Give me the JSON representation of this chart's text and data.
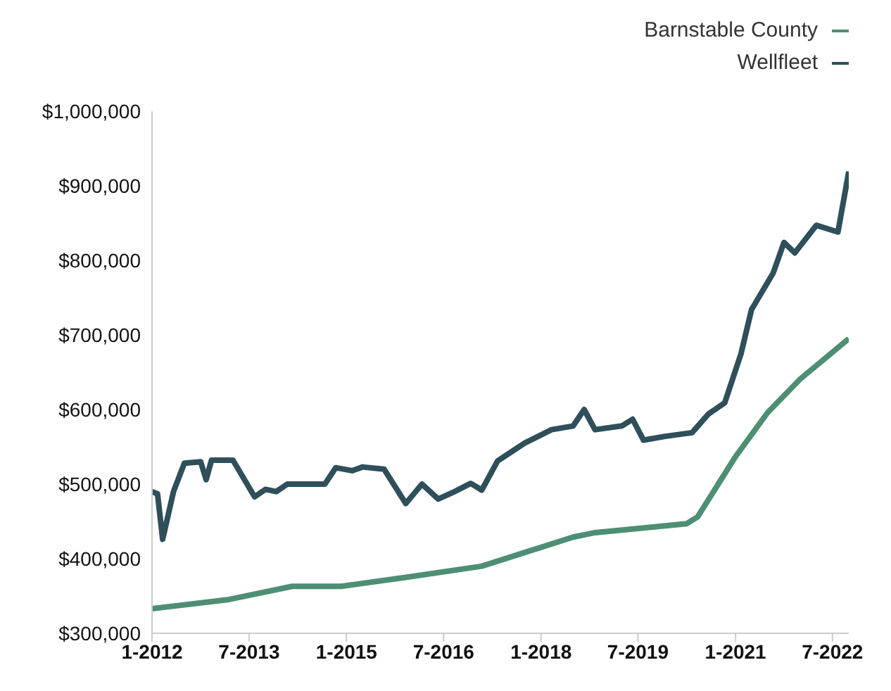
{
  "chart_data": {
    "type": "line",
    "legend": "top right",
    "grid": false,
    "xlim": [
      "2012-01",
      "2022-10"
    ],
    "xticks": [
      {
        "value": "2012-01",
        "label": "1-2012"
      },
      {
        "value": "2013-07",
        "label": "7-2013"
      },
      {
        "value": "2015-01",
        "label": "1-2015"
      },
      {
        "value": "2016-07",
        "label": "7-2016"
      },
      {
        "value": "2018-01",
        "label": "1-2018"
      },
      {
        "value": "2019-07",
        "label": "7-2019"
      },
      {
        "value": "2021-01",
        "label": "1-2021"
      },
      {
        "value": "2022-07",
        "label": "7-2022"
      }
    ],
    "ylim": [
      300000,
      1000000
    ],
    "yticks": [
      {
        "value": 300000,
        "label": "$300,000"
      },
      {
        "value": 400000,
        "label": "$400,000"
      },
      {
        "value": 500000,
        "label": "$500,000"
      },
      {
        "value": 600000,
        "label": "$600,000"
      },
      {
        "value": 700000,
        "label": "$700,000"
      },
      {
        "value": 800000,
        "label": "$800,000"
      },
      {
        "value": 900000,
        "label": "$900,000"
      },
      {
        "value": 1000000,
        "label": "$1,000,000"
      }
    ],
    "series": [
      {
        "name": "Barnstable County",
        "color": "#4e8f74",
        "x": [
          "2012-01",
          "2013-03",
          "2014-03",
          "2014-12",
          "2015-12",
          "2017-02",
          "2018-07",
          "2018-11",
          "2020-04",
          "2020-06",
          "2021-01",
          "2021-07",
          "2022-01",
          "2022-10"
        ],
        "values": [
          333000,
          345000,
          363000,
          363000,
          375000,
          390000,
          429000,
          435000,
          447000,
          456000,
          537000,
          596000,
          641000,
          695000
        ]
      },
      {
        "name": "Wellfleet",
        "color": "#2f4f5a",
        "x": [
          "2012-01",
          "2012-02",
          "2012-03",
          "2012-05",
          "2012-07",
          "2012-10",
          "2012-11",
          "2012-12",
          "2013-04",
          "2013-08",
          "2013-10",
          "2013-12",
          "2014-02",
          "2014-09",
          "2014-11",
          "2015-02",
          "2015-04",
          "2015-08",
          "2015-12",
          "2016-03",
          "2016-06",
          "2016-09",
          "2016-12",
          "2017-02",
          "2017-05",
          "2017-10",
          "2018-03",
          "2018-07",
          "2018-09",
          "2018-11",
          "2019-04",
          "2019-06",
          "2019-08",
          "2019-12",
          "2020-05",
          "2020-08",
          "2020-11",
          "2021-02",
          "2021-04",
          "2021-08",
          "2021-10",
          "2021-12",
          "2022-04",
          "2022-08",
          "2022-10"
        ],
        "values": [
          490000,
          487000,
          426000,
          490000,
          528000,
          530000,
          506000,
          532000,
          532000,
          483000,
          493000,
          490000,
          500000,
          500000,
          522000,
          518000,
          523000,
          520000,
          474000,
          500000,
          480000,
          490000,
          501000,
          492000,
          531000,
          555000,
          573000,
          578000,
          600000,
          573000,
          578000,
          587000,
          559000,
          564000,
          569000,
          594000,
          609000,
          675000,
          734000,
          783000,
          824000,
          810000,
          847000,
          838000,
          919000
        ]
      }
    ]
  }
}
